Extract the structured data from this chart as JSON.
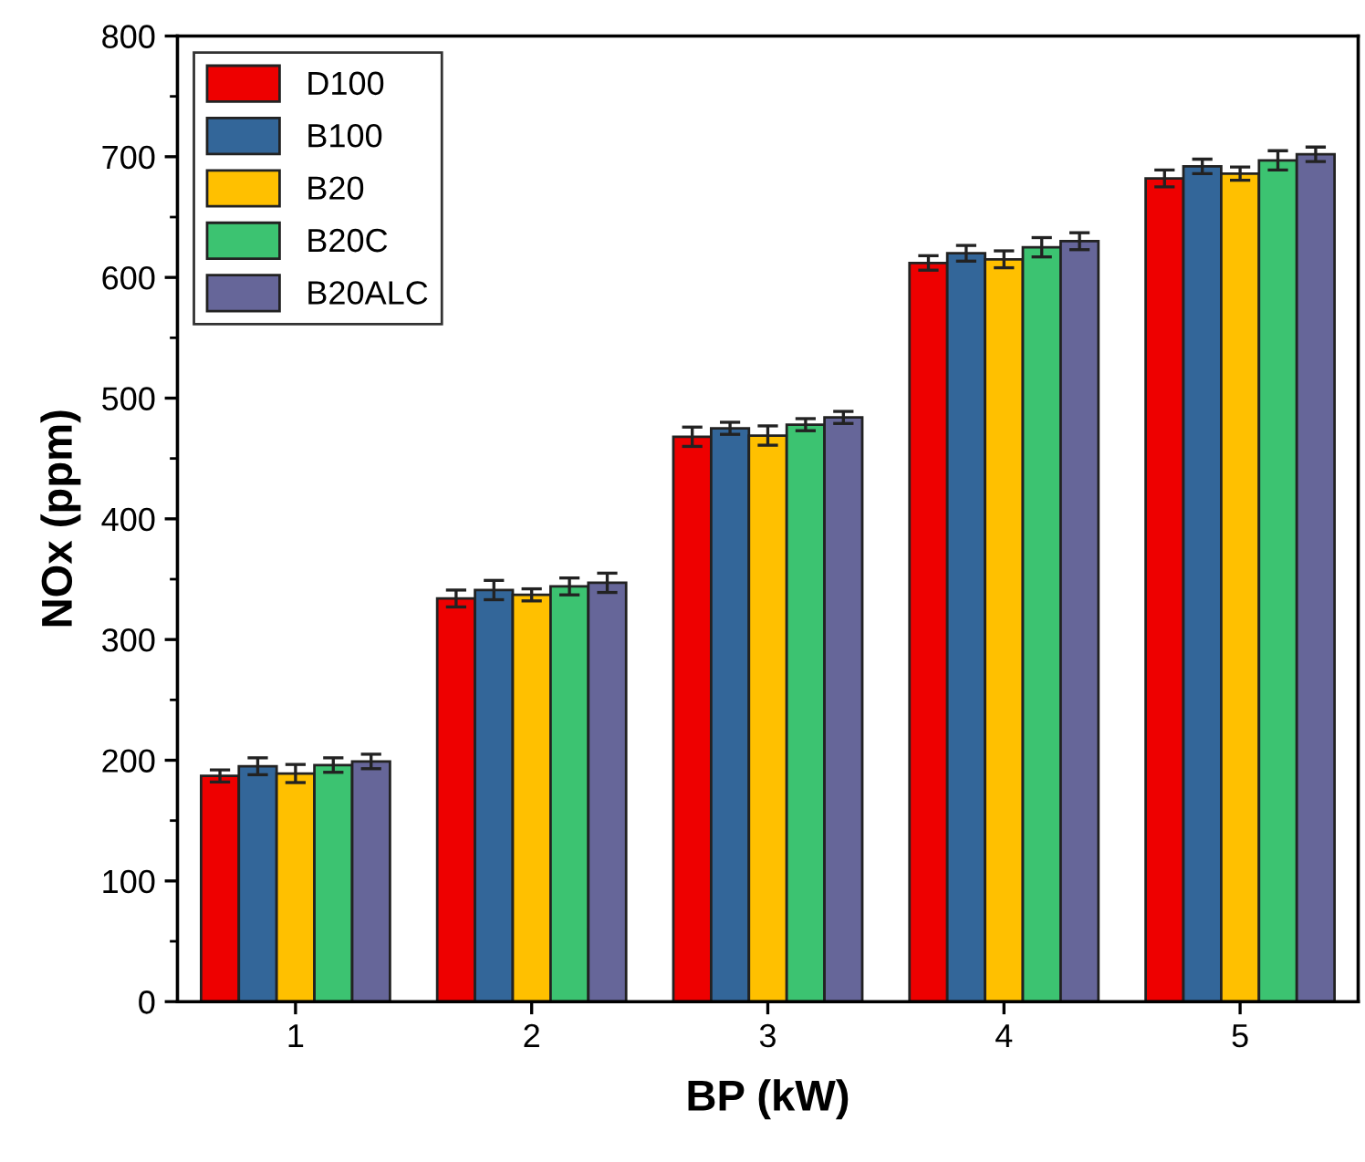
{
  "chart_data": {
    "type": "bar",
    "xlabel": "BP (kW)",
    "ylabel": "NOx (ppm)",
    "categories": [
      "1",
      "2",
      "3",
      "4",
      "5"
    ],
    "series": [
      {
        "name": "D100",
        "color": "#ee0000",
        "values": [
          187,
          334,
          468,
          612,
          682
        ],
        "errors": [
          5,
          7,
          8,
          6,
          7
        ]
      },
      {
        "name": "B100",
        "color": "#336699",
        "values": [
          195,
          341,
          475,
          620,
          692
        ],
        "errors": [
          7,
          8,
          5,
          6.5,
          6
        ]
      },
      {
        "name": "B20",
        "color": "#ffc000",
        "values": [
          189,
          337,
          469,
          615,
          686
        ],
        "errors": [
          7.5,
          5,
          8,
          7,
          5.5
        ]
      },
      {
        "name": "B20C",
        "color": "#3cc371",
        "values": [
          196,
          344,
          478,
          625,
          697
        ],
        "errors": [
          6,
          7,
          5,
          8,
          8
        ]
      },
      {
        "name": "B20ALC",
        "color": "#666699",
        "values": [
          199,
          347,
          484,
          630,
          702
        ],
        "errors": [
          6,
          8,
          5,
          7,
          6
        ]
      }
    ],
    "ylim": [
      0,
      800
    ],
    "yticks": [
      0,
      100,
      200,
      300,
      400,
      500,
      600,
      700,
      800
    ],
    "grid": false,
    "legend": "top left"
  }
}
